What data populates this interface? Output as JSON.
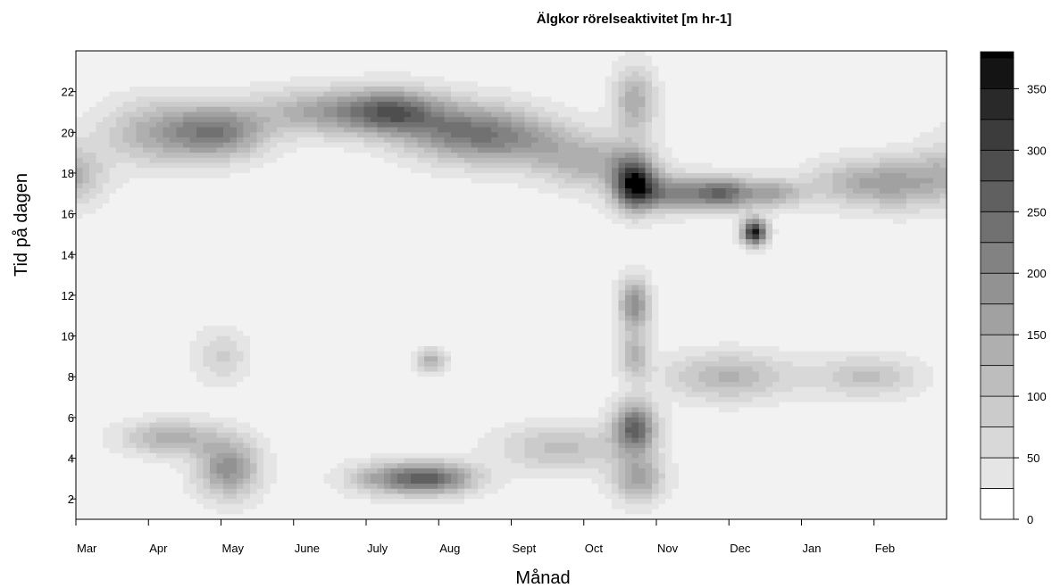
{
  "chart_data": {
    "type": "heatmap",
    "title": "Älgkor rörelseaktivitet [m hr-1]",
    "xlabel": "Månad",
    "ylabel": "Tid på dagen",
    "x_tick_labels": [
      "Mar",
      "Apr",
      "May",
      "June",
      "July",
      "Aug",
      "Sept",
      "Oct",
      "Nov",
      "Dec",
      "Jan",
      "Feb"
    ],
    "y_ticks": [
      2,
      4,
      6,
      8,
      10,
      12,
      14,
      16,
      18,
      20,
      22
    ],
    "y_tick_labels": [
      "2",
      "4",
      "6",
      "8",
      "10",
      "12",
      "14",
      "16",
      "18",
      "20",
      "22"
    ],
    "ylim": [
      1,
      24
    ],
    "colorbar": {
      "levels": [
        0,
        25,
        50,
        75,
        100,
        125,
        150,
        175,
        200,
        225,
        250,
        275,
        300,
        325,
        350,
        375
      ],
      "tick_values": [
        0,
        50,
        100,
        150,
        200,
        250,
        300,
        350
      ],
      "tick_labels": [
        "0",
        "50",
        "100",
        "150",
        "200",
        "250",
        "300",
        "350"
      ],
      "vmax": 380,
      "colors": [
        "#ffffff",
        "#f2f2f2",
        "#e5e5e5",
        "#d8d8d8",
        "#cbcbcb",
        "#bdbdbd",
        "#afafaf",
        "#a1a1a1",
        "#929292",
        "#828282",
        "#717171",
        "#606060",
        "#4e4e4e",
        "#3c3c3c",
        "#292929",
        "#141414",
        "#000000"
      ]
    },
    "base_value": 35,
    "hotspots": [
      {
        "month": 1.15,
        "hour": 20.0,
        "value": 130,
        "spread_m": 0.55,
        "spread_h": 1.1
      },
      {
        "month": 2.0,
        "hour": 20.0,
        "value": 175,
        "spread_m": 0.45,
        "spread_h": 0.9
      },
      {
        "month": 3.5,
        "hour": 21.0,
        "value": 150,
        "spread_m": 0.7,
        "spread_h": 0.8
      },
      {
        "month": 4.4,
        "hour": 21.0,
        "value": 185,
        "spread_m": 0.45,
        "spread_h": 0.8
      },
      {
        "month": 5.4,
        "hour": 20.0,
        "value": 205,
        "spread_m": 0.6,
        "spread_h": 1.0
      },
      {
        "month": 6.3,
        "hour": 19.5,
        "value": 95,
        "spread_m": 0.5,
        "spread_h": 0.9
      },
      {
        "month": 7.15,
        "hour": 18.5,
        "value": 120,
        "spread_m": 0.5,
        "spread_h": 0.9
      },
      {
        "month": 7.7,
        "hour": 17.5,
        "value": 300,
        "spread_m": 0.2,
        "spread_h": 0.9
      },
      {
        "month": 8.3,
        "hour": 17.0,
        "value": 200,
        "spread_m": 0.45,
        "spread_h": 0.6
      },
      {
        "month": 8.95,
        "hour": 17.0,
        "value": 170,
        "spread_m": 0.25,
        "spread_h": 0.55
      },
      {
        "month": 9.6,
        "hour": 17.0,
        "value": 140,
        "spread_m": 0.3,
        "spread_h": 0.5
      },
      {
        "month": 9.35,
        "hour": 15.1,
        "value": 345,
        "spread_m": 0.12,
        "spread_h": 0.45
      },
      {
        "month": 10.7,
        "hour": 17.5,
        "value": 105,
        "spread_m": 0.45,
        "spread_h": 0.8
      },
      {
        "month": 7.7,
        "hour": 21.5,
        "value": 135,
        "spread_m": 0.2,
        "spread_h": 1.2
      },
      {
        "month": 7.7,
        "hour": 11.5,
        "value": 185,
        "spread_m": 0.15,
        "spread_h": 0.9
      },
      {
        "month": 7.7,
        "hour": 9.0,
        "value": 115,
        "spread_m": 0.15,
        "spread_h": 0.8
      },
      {
        "month": 7.7,
        "hour": 5.5,
        "value": 250,
        "spread_m": 0.2,
        "spread_h": 0.85
      },
      {
        "month": 7.75,
        "hour": 3.0,
        "value": 150,
        "spread_m": 0.25,
        "spread_h": 0.8
      },
      {
        "month": 2.1,
        "hour": 3.5,
        "value": 180,
        "spread_m": 0.3,
        "spread_h": 1.0
      },
      {
        "month": 1.3,
        "hour": 5.0,
        "value": 130,
        "spread_m": 0.45,
        "spread_h": 0.6
      },
      {
        "month": 4.4,
        "hour": 3.0,
        "value": 160,
        "spread_m": 0.45,
        "spread_h": 0.55
      },
      {
        "month": 5.0,
        "hour": 3.0,
        "value": 170,
        "spread_m": 0.4,
        "spread_h": 0.55
      },
      {
        "month": 6.7,
        "hour": 4.5,
        "value": 100,
        "spread_m": 0.6,
        "spread_h": 0.8
      },
      {
        "month": 9.0,
        "hour": 8.0,
        "value": 120,
        "spread_m": 0.6,
        "spread_h": 0.8
      },
      {
        "month": 10.9,
        "hour": 8.0,
        "value": 95,
        "spread_m": 0.5,
        "spread_h": 0.7
      },
      {
        "month": 4.9,
        "hour": 8.8,
        "value": 125,
        "spread_m": 0.15,
        "spread_h": 0.4
      },
      {
        "month": 0.0,
        "hour": 18.0,
        "value": 90,
        "spread_m": 0.3,
        "spread_h": 1.0
      },
      {
        "month": 11.4,
        "hour": 17.5,
        "value": 110,
        "spread_m": 0.4,
        "spread_h": 0.9
      },
      {
        "month": 2.0,
        "hour": 9.0,
        "value": 70,
        "spread_m": 0.25,
        "spread_h": 0.9
      }
    ]
  }
}
